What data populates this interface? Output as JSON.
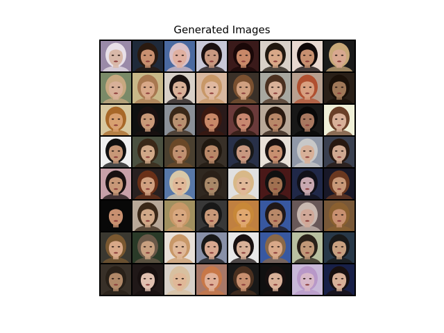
{
  "title": "Generated Images",
  "grid": {
    "rows": 8,
    "cols": 8,
    "tiles": [
      {
        "bg": "#9a8aa8",
        "skin": "#d8b8a8",
        "hair": "#e8e0e8"
      },
      {
        "bg": "#1f2a3a",
        "skin": "#c89070",
        "hair": "#2a1a10"
      },
      {
        "bg": "#4a6aa0",
        "skin": "#e0b0a0",
        "hair": "#d8c0c8"
      },
      {
        "bg": "#c8c8d8",
        "skin": "#c89880",
        "hair": "#1a1010"
      },
      {
        "bg": "#3a1a1a",
        "skin": "#c88868",
        "hair": "#1a0808"
      },
      {
        "bg": "#d8d0c8",
        "skin": "#d8a888",
        "hair": "#201810"
      },
      {
        "bg": "#e8d8d0",
        "skin": "#c89070",
        "hair": "#100808"
      },
      {
        "bg": "#1a1a1a",
        "skin": "#d8a890",
        "hair": "#c8a878"
      },
      {
        "bg": "#7a8a68",
        "skin": "#d8b098",
        "hair": "#c8a880"
      },
      {
        "bg": "#c8b888",
        "skin": "#d8a888",
        "hair": "#a87850"
      },
      {
        "bg": "#d8d0c8",
        "skin": "#d8b098",
        "hair": "#181010"
      },
      {
        "bg": "#d8b8a0",
        "skin": "#e0b8a0",
        "hair": "#c89868"
      },
      {
        "bg": "#3a3028",
        "skin": "#d0a080",
        "hair": "#7a5030"
      },
      {
        "bg": "#a8a8a0",
        "skin": "#d8b098",
        "hair": "#4a3020"
      },
      {
        "bg": "#b8a090",
        "skin": "#d8a080",
        "hair": "#b05030"
      },
      {
        "bg": "#2a2018",
        "skin": "#a07858",
        "hair": "#1a1008"
      },
      {
        "bg": "#d8c8a0",
        "skin": "#d8a070",
        "hair": "#a86828"
      },
      {
        "bg": "#101010",
        "skin": "#c89878",
        "hair": "#1a1010"
      },
      {
        "bg": "#8a9098",
        "skin": "#b89070",
        "hair": "#3a2818"
      },
      {
        "bg": "#2a1a1a",
        "skin": "#c88868",
        "hair": "#3a1810"
      },
      {
        "bg": "#6a3a3a",
        "skin": "#c88870",
        "hair": "#2a1810"
      },
      {
        "bg": "#b8a898",
        "skin": "#b88868",
        "hair": "#2a1a10"
      },
      {
        "bg": "#181818",
        "skin": "#a87860",
        "hair": "#080808"
      },
      {
        "bg": "#f0f0d8",
        "skin": "#d8b098",
        "hair": "#6a4028"
      },
      {
        "bg": "#f0f0f0",
        "skin": "#c89878",
        "hair": "#101010"
      },
      {
        "bg": "#4a5040",
        "skin": "#d0a888",
        "hair": "#3a2818"
      },
      {
        "bg": "#4a4030",
        "skin": "#c09070",
        "hair": "#6a4828"
      },
      {
        "bg": "#383028",
        "skin": "#b88868",
        "hair": "#201810"
      },
      {
        "bg": "#283048",
        "skin": "#c89880",
        "hair": "#181818"
      },
      {
        "bg": "#e8e0d8",
        "skin": "#c89070",
        "hair": "#181010"
      },
      {
        "bg": "#9098a8",
        "skin": "#d8b098",
        "hair": "#c8c8c8"
      },
      {
        "bg": "#3a4050",
        "skin": "#d0a890",
        "hair": "#281810"
      },
      {
        "bg": "#c8a0a8",
        "skin": "#c89878",
        "hair": "#181010"
      },
      {
        "bg": "#282020",
        "skin": "#d0a080",
        "hair": "#6a3018"
      },
      {
        "bg": "#5878a8",
        "skin": "#e0b898",
        "hair": "#d8c8a8"
      },
      {
        "bg": "#302820",
        "skin": "#a88868",
        "hair": "#2a2018"
      },
      {
        "bg": "#e0e0e0",
        "skin": "#e0b898",
        "hair": "#d8b888"
      },
      {
        "bg": "#4a1818",
        "skin": "#a07050",
        "hair": "#101010"
      },
      {
        "bg": "#202848",
        "skin": "#c8a8b0",
        "hair": "#101018"
      },
      {
        "bg": "#181828",
        "skin": "#c89878",
        "hair": "#6a3820"
      },
      {
        "bg": "#080808",
        "skin": "#c89070",
        "hair": "#080808"
      },
      {
        "bg": "#b8a898",
        "skin": "#d0a888",
        "hair": "#3a2818"
      },
      {
        "bg": "#a09060",
        "skin": "#d8a880",
        "hair": "#c89868"
      },
      {
        "bg": "#383838",
        "skin": "#c89878",
        "hair": "#181818"
      },
      {
        "bg": "#c08040",
        "skin": "#e0a870",
        "hair": "#c88838"
      },
      {
        "bg": "#3858a0",
        "skin": "#b88868",
        "hair": "#201818"
      },
      {
        "bg": "#685858",
        "skin": "#d0a898",
        "hair": "#c8b8b0"
      },
      {
        "bg": "#785838",
        "skin": "#c89070",
        "hair": "#8a6030"
      },
      {
        "bg": "#3a3830",
        "skin": "#d8a888",
        "hair": "#7a5830"
      },
      {
        "bg": "#2a3a28",
        "skin": "#c8a080",
        "hair": "#6a5848"
      },
      {
        "bg": "#e8e0d8",
        "skin": "#e0b898",
        "hair": "#c89868"
      },
      {
        "bg": "#8890a8",
        "skin": "#d8a890",
        "hair": "#181818"
      },
      {
        "bg": "#e8e8e8",
        "skin": "#d8b098",
        "hair": "#181010"
      },
      {
        "bg": "#3858a0",
        "skin": "#d8a888",
        "hair": "#8a6848"
      },
      {
        "bg": "#b8c0a0",
        "skin": "#c09878",
        "hair": "#282018"
      },
      {
        "bg": "#283848",
        "skin": "#c8a080",
        "hair": "#181818"
      },
      {
        "bg": "#383028",
        "skin": "#b08868",
        "hair": "#282018"
      },
      {
        "bg": "#201818",
        "skin": "#e0c0b0",
        "hair": "#181010"
      },
      {
        "bg": "#d8d0c8",
        "skin": "#e0b898",
        "hair": "#d8c0a0"
      },
      {
        "bg": "#a87868",
        "skin": "#e0b098",
        "hair": "#c87848"
      },
      {
        "bg": "#181818",
        "skin": "#c89070",
        "hair": "#4a3020"
      },
      {
        "bg": "#101010",
        "skin": "#d8b098",
        "hair": "#181010"
      },
      {
        "bg": "#c8b8d8",
        "skin": "#d8b8c8",
        "hair": "#b898c8"
      },
      {
        "bg": "#182048",
        "skin": "#d8b098",
        "hair": "#181010"
      }
    ]
  }
}
